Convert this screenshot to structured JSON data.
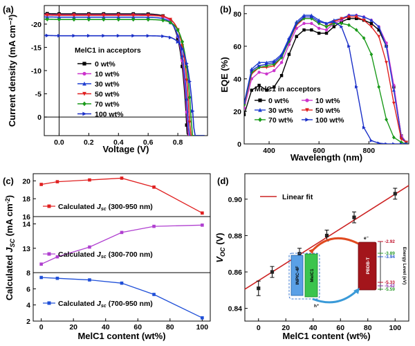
{
  "colors": {
    "0 wt%": "#000000",
    "10 wt%": "#cc33cc",
    "30 wt%": "#1f3fd0",
    "50 wt%": "#e02020",
    "70 wt%": "#1a9a1a",
    "100 wt%": "#1a2fc8",
    "calc1": "#e02020",
    "calc2": "#b040d0",
    "calc3": "#1f4fd8",
    "fit": "#cc2222"
  },
  "panel_labels": [
    "(a)",
    "(b)",
    "(c)",
    "(d)"
  ],
  "chart_data": [
    {
      "id": "a",
      "type": "line",
      "xlabel": "Voltage (V)",
      "ylabel": "Current density (mA cm⁻²)",
      "xlim": [
        -0.1,
        1.0
      ],
      "ylim": [
        -24,
        4
      ],
      "xticks": [
        0.0,
        0.2,
        0.4,
        0.6,
        0.8
      ],
      "yticks": [
        -20,
        -15,
        -10,
        -5,
        0
      ],
      "legend_title": "MelC1 in acceptors",
      "series": [
        {
          "name": "0 wt%",
          "marker": "square",
          "jsc": -22.2,
          "voc": 0.857
        },
        {
          "name": "10 wt%",
          "marker": "circle",
          "jsc": -22.0,
          "voc": 0.862
        },
        {
          "name": "30 wt%",
          "marker": "triangle-up",
          "jsc": -21.5,
          "voc": 0.868
        },
        {
          "name": "50 wt%",
          "marker": "triangle-down",
          "jsc": -21.9,
          "voc": 0.878
        },
        {
          "name": "70 wt%",
          "marker": "diamond",
          "jsc": -21.0,
          "voc": 0.889
        },
        {
          "name": "100 wt%",
          "marker": "triangle-right",
          "jsc": -17.5,
          "voc": 0.903
        }
      ]
    },
    {
      "id": "b",
      "type": "line",
      "xlabel": "Wavelength (nm)",
      "ylabel": "EQE (%)",
      "xlim": [
        300,
        960
      ],
      "ylim": [
        0,
        85
      ],
      "xticks": [
        400,
        600,
        800
      ],
      "yticks": [
        0,
        20,
        40,
        60,
        80
      ],
      "legend_title": "MelC1 in acceptors",
      "x": [
        300,
        330,
        360,
        390,
        420,
        450,
        480,
        510,
        540,
        570,
        600,
        630,
        660,
        690,
        720,
        750,
        780,
        810,
        840,
        870,
        900,
        930,
        950
      ],
      "series": [
        {
          "name": "0 wt%",
          "marker": "square",
          "values": [
            18,
            33,
            36,
            33,
            35,
            42,
            55,
            66,
            70,
            70,
            68,
            68,
            72,
            75,
            77,
            77,
            76,
            74,
            70,
            60,
            35,
            5,
            1
          ]
        },
        {
          "name": "10 wt%",
          "marker": "circle",
          "values": [
            22,
            40,
            44,
            43,
            45,
            50,
            61,
            71,
            74,
            74,
            71,
            70,
            74,
            76,
            79,
            79,
            78,
            76,
            72,
            62,
            36,
            5,
            1
          ]
        },
        {
          "name": "30 wt%",
          "marker": "triangle-up",
          "values": [
            25,
            46,
            50,
            50,
            51,
            55,
            65,
            75,
            79,
            79,
            76,
            74,
            76,
            77,
            79,
            79,
            78,
            76,
            72,
            60,
            33,
            4,
            1
          ]
        },
        {
          "name": "50 wt%",
          "marker": "triangle-down",
          "values": [
            24,
            43,
            47,
            47,
            48,
            53,
            63,
            73,
            77,
            77,
            74,
            72,
            75,
            77,
            78,
            78,
            76,
            72,
            66,
            50,
            25,
            3,
            1
          ]
        },
        {
          "name": "70 wt%",
          "marker": "diamond",
          "values": [
            24,
            44,
            47,
            48,
            49,
            53,
            63,
            74,
            77,
            77,
            74,
            72,
            74,
            74,
            73,
            70,
            65,
            55,
            35,
            15,
            4,
            1,
            0
          ]
        },
        {
          "name": "100 wt%",
          "marker": "triangle-right",
          "values": [
            25,
            45,
            48,
            49,
            50,
            54,
            64,
            74,
            78,
            78,
            75,
            74,
            75,
            72,
            60,
            35,
            10,
            2,
            0.5,
            0,
            0,
            0,
            0
          ]
        }
      ]
    },
    {
      "id": "c",
      "type": "line",
      "xlabel": "MelC1 content (wt%)",
      "ylabel": "Calculated J_SC (mA cm⁻²)",
      "x": [
        0,
        10,
        30,
        50,
        70,
        100
      ],
      "subplots": [
        {
          "name": "Calculated J_sc (300-950 nm)",
          "label_main": "Calculated ",
          "label_j": "J",
          "label_sub": "sc",
          "label_range": " (300-950 nm)",
          "marker": "square",
          "values": [
            19.6,
            19.9,
            20.1,
            20.3,
            19.3,
            16.4
          ],
          "ylim": [
            16,
            20.8
          ],
          "yticks": [
            16,
            18,
            20
          ]
        },
        {
          "name": "Calculated J_sc (300-700 nm)",
          "label_main": "Calculated ",
          "label_j": "J",
          "label_sub": "sc",
          "label_range": " (300-700 nm)",
          "marker": "square",
          "values": [
            12.35,
            12.65,
            13.05,
            13.65,
            13.9,
            13.95
          ],
          "ylim": [
            12,
            14.3
          ],
          "yticks": [
            13,
            14
          ]
        },
        {
          "name": "Calculated J_sc (700-950 nm)",
          "label_main": "Calculated ",
          "label_j": "J",
          "label_sub": "sc",
          "label_range": " (700-950 nm)",
          "marker": "square",
          "values": [
            7.4,
            7.3,
            7.1,
            6.7,
            5.3,
            2.4
          ],
          "ylim": [
            2,
            8
          ],
          "yticks": [
            2,
            4,
            6,
            8
          ]
        }
      ],
      "xticks": [
        0,
        20,
        40,
        60,
        80,
        100
      ],
      "xlim": [
        -5,
        105
      ]
    },
    {
      "id": "d",
      "type": "scatter",
      "xlabel": "MelC1 content (wt%)",
      "ylabel": "V_OC (V)",
      "ylabel_v": "V",
      "ylabel_sub": "OC",
      "ylabel_unit": " (V)",
      "xlim": [
        -10,
        110
      ],
      "ylim": [
        0.833,
        0.914
      ],
      "xticks": [
        0,
        20,
        40,
        60,
        80,
        100
      ],
      "yticks": [
        0.84,
        0.86,
        0.88,
        0.9
      ],
      "x": [
        0,
        10,
        30,
        50,
        70,
        100
      ],
      "values": [
        0.851,
        0.86,
        0.87,
        0.88,
        0.89,
        0.903
      ],
      "errors": [
        0.004,
        0.003,
        0.003,
        0.003,
        0.003,
        0.003
      ],
      "fit": {
        "name": "Linear fit",
        "x": [
          -10,
          110
        ],
        "values": [
          0.8505,
          0.9075
        ]
      },
      "inset": {
        "title": "Energy Level (eV)",
        "electron": "e⁻",
        "hole": "h⁺",
        "materials": [
          "INPIC-4F",
          "MelC1",
          "PBDB-T"
        ],
        "levels": [
          {
            "value": "-2.92",
            "color": "#c0102a"
          },
          {
            "value": "-3.89",
            "color": "#2a9a2a"
          },
          {
            "value": "-3.94",
            "color": "#2255cc"
          },
          {
            "value": "-5.33",
            "color": "#c0102a"
          },
          {
            "value": "-5.42",
            "color": "#8833aa"
          },
          {
            "value": "-5.59",
            "color": "#2a9a2a"
          }
        ]
      }
    }
  ]
}
